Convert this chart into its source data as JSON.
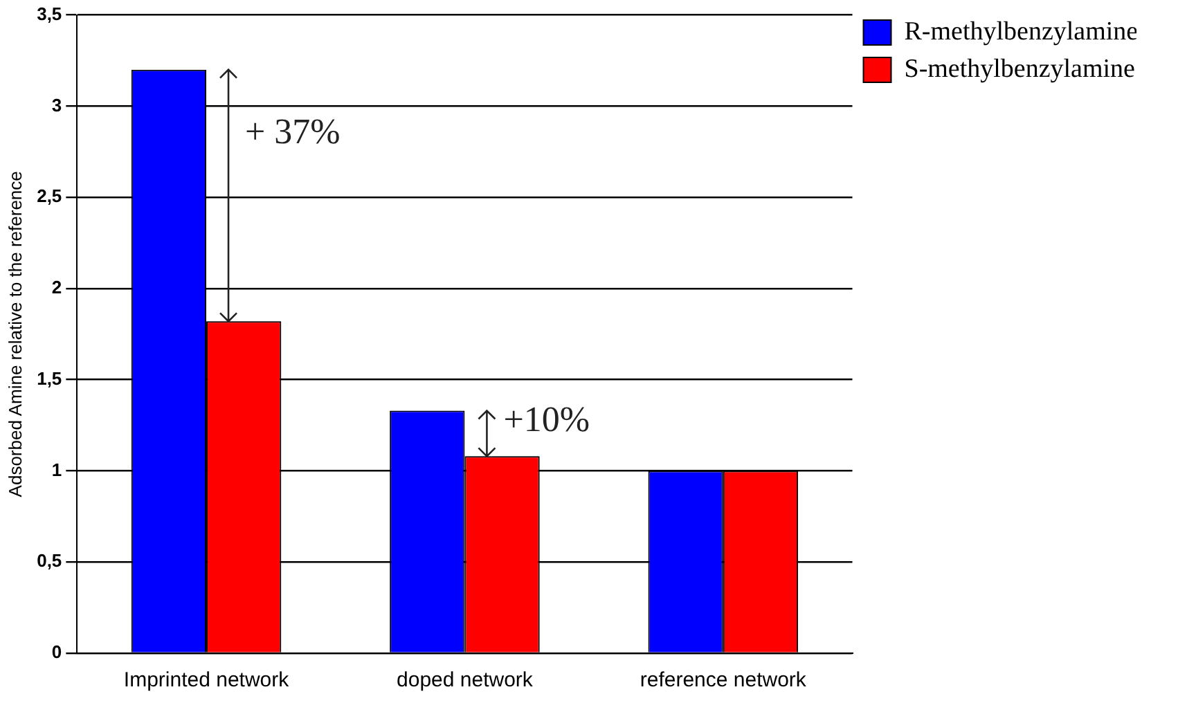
{
  "chart_data": {
    "type": "bar",
    "ylabel": "Adsorbed Amine relative to the reference",
    "categories": [
      "Imprinted network",
      "doped network",
      "reference network"
    ],
    "series": [
      {
        "name": "R-methylbenzylamine",
        "color": "#0000ff",
        "values": [
          3.2,
          1.33,
          1
        ]
      },
      {
        "name": "S-methylbenzylamine",
        "color": "#ff0000",
        "values": [
          1.82,
          1.08,
          1
        ]
      }
    ],
    "ylim": [
      0,
      3.5
    ],
    "yticks": [
      0,
      {
        "value": 0.5,
        "label": "0,5"
      },
      1,
      {
        "value": 1.5,
        "label": "1,5"
      },
      2,
      {
        "value": 2.5,
        "label": "2,5"
      },
      3,
      {
        "value": 3.5,
        "label": "3,5"
      }
    ],
    "grid": "y",
    "legend": "top right",
    "annotations": [
      {
        "text": "+ 37%",
        "x": "Imprinted network",
        "y": 2.85
      },
      {
        "text": "+10%",
        "x": "doped network",
        "y": 1.27
      }
    ]
  }
}
